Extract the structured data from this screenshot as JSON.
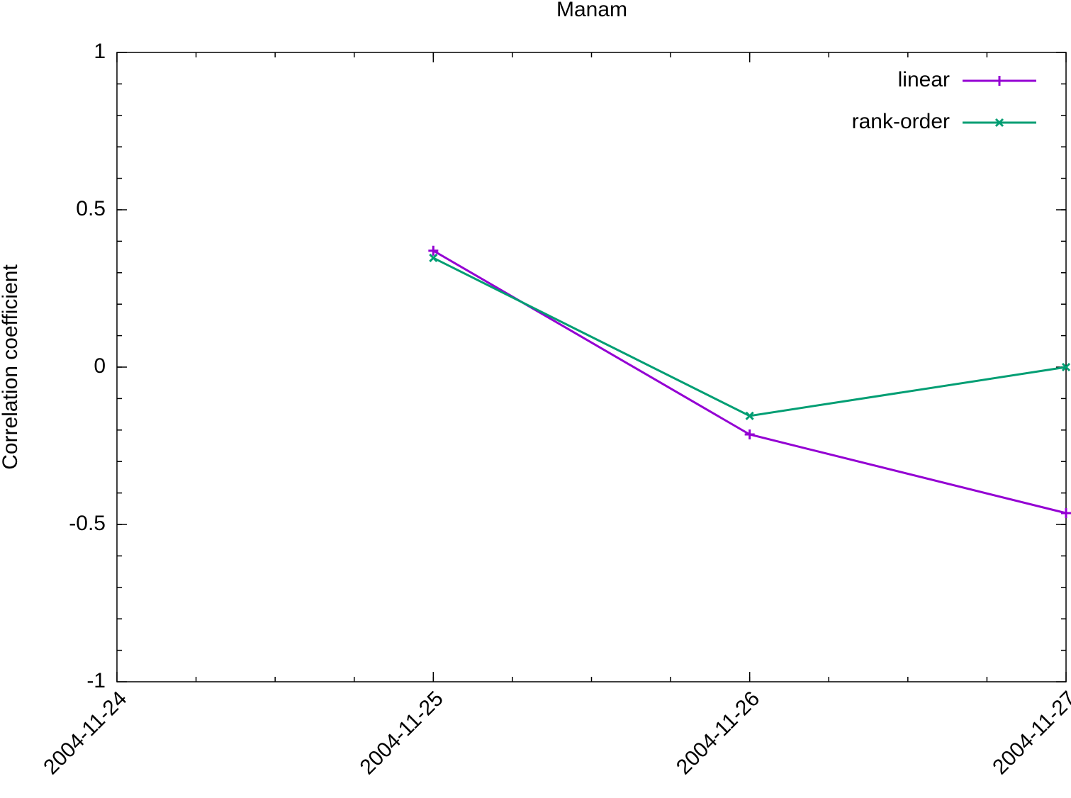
{
  "chart_data": {
    "type": "line",
    "title": "Manam",
    "y_label": "Correlation coefficient",
    "x": [
      "2004-11-25",
      "2004-11-26",
      "2004-11-27"
    ],
    "xlim": [
      "2004-11-24",
      "2004-11-27"
    ],
    "xticks": [
      "2004-11-24",
      "2004-11-25",
      "2004-11-26",
      "2004-11-27"
    ],
    "ylim": [
      -1,
      1
    ],
    "yticks": [
      -1,
      -0.5,
      0,
      0.5,
      1
    ],
    "legend": "top-right",
    "series": [
      {
        "name": "linear",
        "color": "#9400d3",
        "marker": "plus",
        "values": [
          0.37,
          -0.214,
          -0.464
        ]
      },
      {
        "name": "rank-order",
        "color": "#009e73",
        "marker": "cross",
        "values": [
          0.347,
          -0.155,
          0
        ]
      }
    ]
  }
}
